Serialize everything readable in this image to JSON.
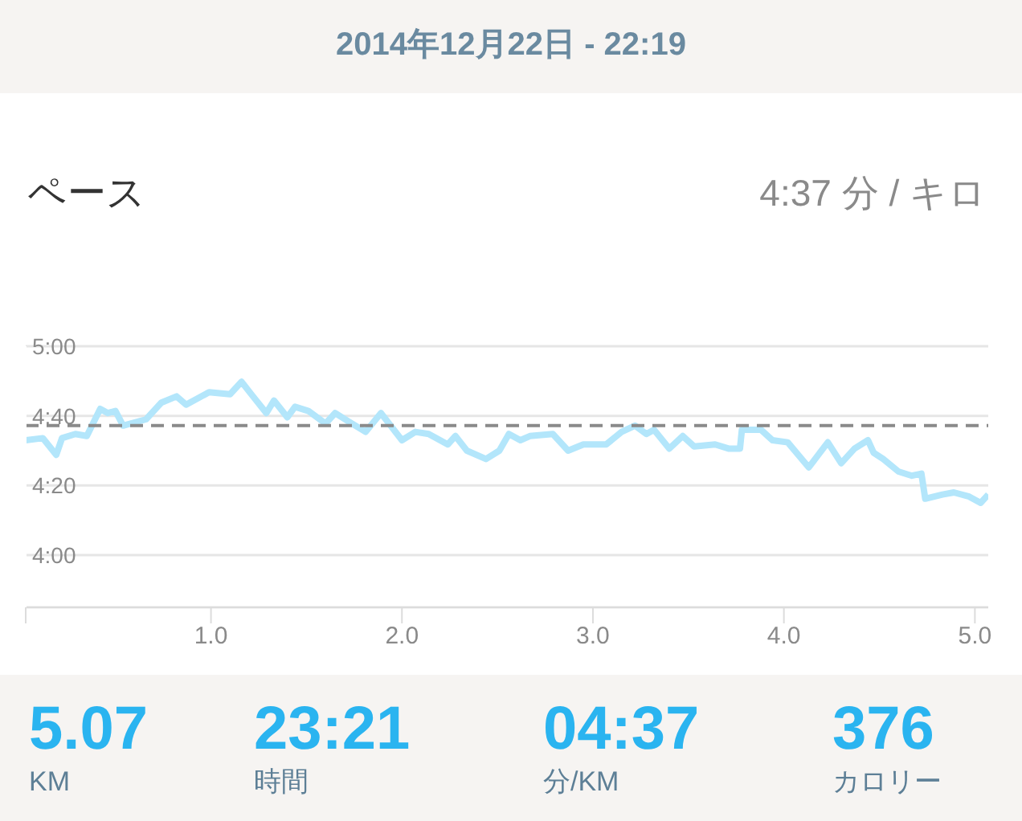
{
  "chart_data": {
    "type": "line",
    "subtitle": "2014年12月22日 - 22:19",
    "title": "ペース",
    "annotations": [
      "4:37 分 / キロ",
      "5.07",
      "KM",
      "23:21",
      "時間",
      "04:37",
      "分/KM",
      "376",
      "カロリー"
    ],
    "x": [
      0.03,
      0.12,
      0.19,
      0.22,
      0.29,
      0.35,
      0.42,
      0.46,
      0.5,
      0.54,
      0.66,
      0.74,
      0.82,
      0.87,
      0.99,
      1.1,
      1.16,
      1.22,
      1.29,
      1.33,
      1.4,
      1.44,
      1.51,
      1.6,
      1.65,
      1.72,
      1.81,
      1.89,
      2.0,
      2.07,
      2.14,
      2.24,
      2.28,
      2.34,
      2.44,
      2.51,
      2.56,
      2.62,
      2.67,
      2.79,
      2.87,
      2.95,
      3.07,
      3.15,
      3.22,
      3.28,
      3.32,
      3.4,
      3.47,
      3.53,
      3.64,
      3.71,
      3.77,
      3.78,
      3.88,
      3.94,
      4.02,
      4.13,
      4.23,
      4.3,
      4.37,
      4.44,
      4.47,
      4.52,
      4.6,
      4.67,
      4.72,
      4.74,
      4.83,
      4.89,
      4.97,
      5.03,
      5.07
    ],
    "series": [
      {
        "color": "#b3e6fb",
        "values": [
          4.55,
          4.56,
          4.48,
          4.56,
          4.58,
          4.57,
          4.7,
          4.68,
          4.69,
          4.62,
          4.65,
          4.73,
          4.76,
          4.72,
          4.78,
          4.77,
          4.83,
          4.76,
          4.68,
          4.74,
          4.66,
          4.71,
          4.69,
          4.63,
          4.68,
          4.64,
          4.59,
          4.68,
          4.55,
          4.59,
          4.58,
          4.53,
          4.57,
          4.5,
          4.46,
          4.5,
          4.58,
          4.55,
          4.57,
          4.58,
          4.5,
          4.53,
          4.53,
          4.59,
          4.62,
          4.58,
          4.6,
          4.51,
          4.57,
          4.52,
          4.53,
          4.51,
          4.51,
          4.6,
          4.6,
          4.55,
          4.54,
          4.42,
          4.54,
          4.44,
          4.51,
          4.55,
          4.49,
          4.46,
          4.4,
          4.38,
          4.39,
          4.27,
          4.29,
          4.3,
          4.28,
          4.25,
          4.29
        ]
      }
    ],
    "xlim": [
      0.03,
      5.07
    ],
    "xticks": [
      {
        "value": 0.03,
        "label": null
      },
      {
        "value": 1,
        "label": "1.0"
      },
      {
        "value": 2,
        "label": "2.0"
      },
      {
        "value": 3,
        "label": "3.0"
      },
      {
        "value": 4,
        "label": "4.0"
      },
      {
        "value": 5,
        "label": "5.0"
      }
    ],
    "ylim": [
      3.75,
      5
    ],
    "yticks": [
      {
        "value": 4,
        "label": "4:00"
      },
      {
        "value": 4.3333,
        "label": "4:20"
      },
      {
        "value": 4.6667,
        "label": "4:40"
      },
      {
        "value": 5,
        "label": "5:00"
      }
    ],
    "grid": "y",
    "ref_lines": [
      {
        "axis": "y",
        "value": 4.62,
        "color": "#8a8a8a",
        "line_style": "dashed"
      }
    ]
  }
}
